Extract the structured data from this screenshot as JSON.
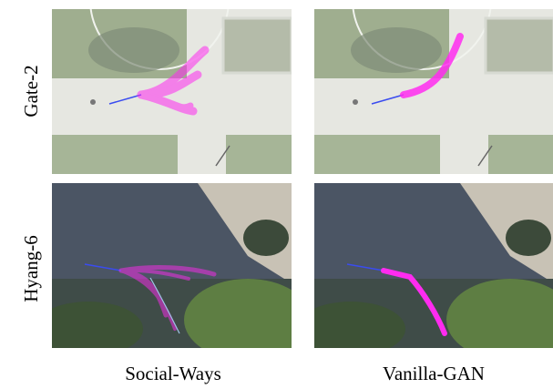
{
  "rows": [
    {
      "label": "Gate-2"
    },
    {
      "label": "Hyang-6"
    }
  ],
  "columns": [
    {
      "label": "Social-Ways"
    },
    {
      "label": "Vanilla-GAN"
    }
  ]
}
